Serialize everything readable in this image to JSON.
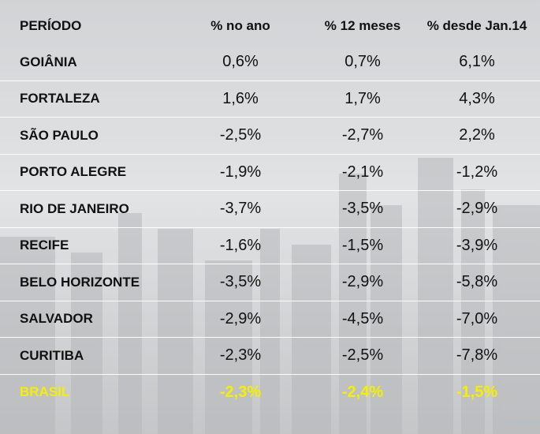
{
  "table": {
    "header": [
      "PERÍODO",
      "% no ano",
      "% 12 meses",
      "% desde Jan.14"
    ],
    "rows": [
      [
        "GOIÂNIA",
        "0,6%",
        "0,7%",
        "6,1%"
      ],
      [
        "FORTALEZA",
        "1,6%",
        "1,7%",
        "4,3%"
      ],
      [
        "SÃO PAULO",
        "-2,5%",
        "-2,7%",
        "2,2%"
      ],
      [
        "PORTO ALEGRE",
        "-1,9%",
        "-2,1%",
        "-1,2%"
      ],
      [
        "RIO DE JANEIRO",
        "-3,7%",
        "-3,5%",
        "-2,9%"
      ],
      [
        "RECIFE",
        "-1,6%",
        "-1,5%",
        "-3,9%"
      ],
      [
        "BELO HORIZONTE",
        "-3,5%",
        "-2,9%",
        "-5,8%"
      ],
      [
        "SALVADOR",
        "-2,9%",
        "-4,5%",
        "-7,0%"
      ],
      [
        "CURITIBA",
        "-2,3%",
        "-2,5%",
        "-7,8%"
      ],
      [
        "BRASIL",
        "-2,3%",
        "-2,4%",
        "-1,5%"
      ]
    ]
  }
}
